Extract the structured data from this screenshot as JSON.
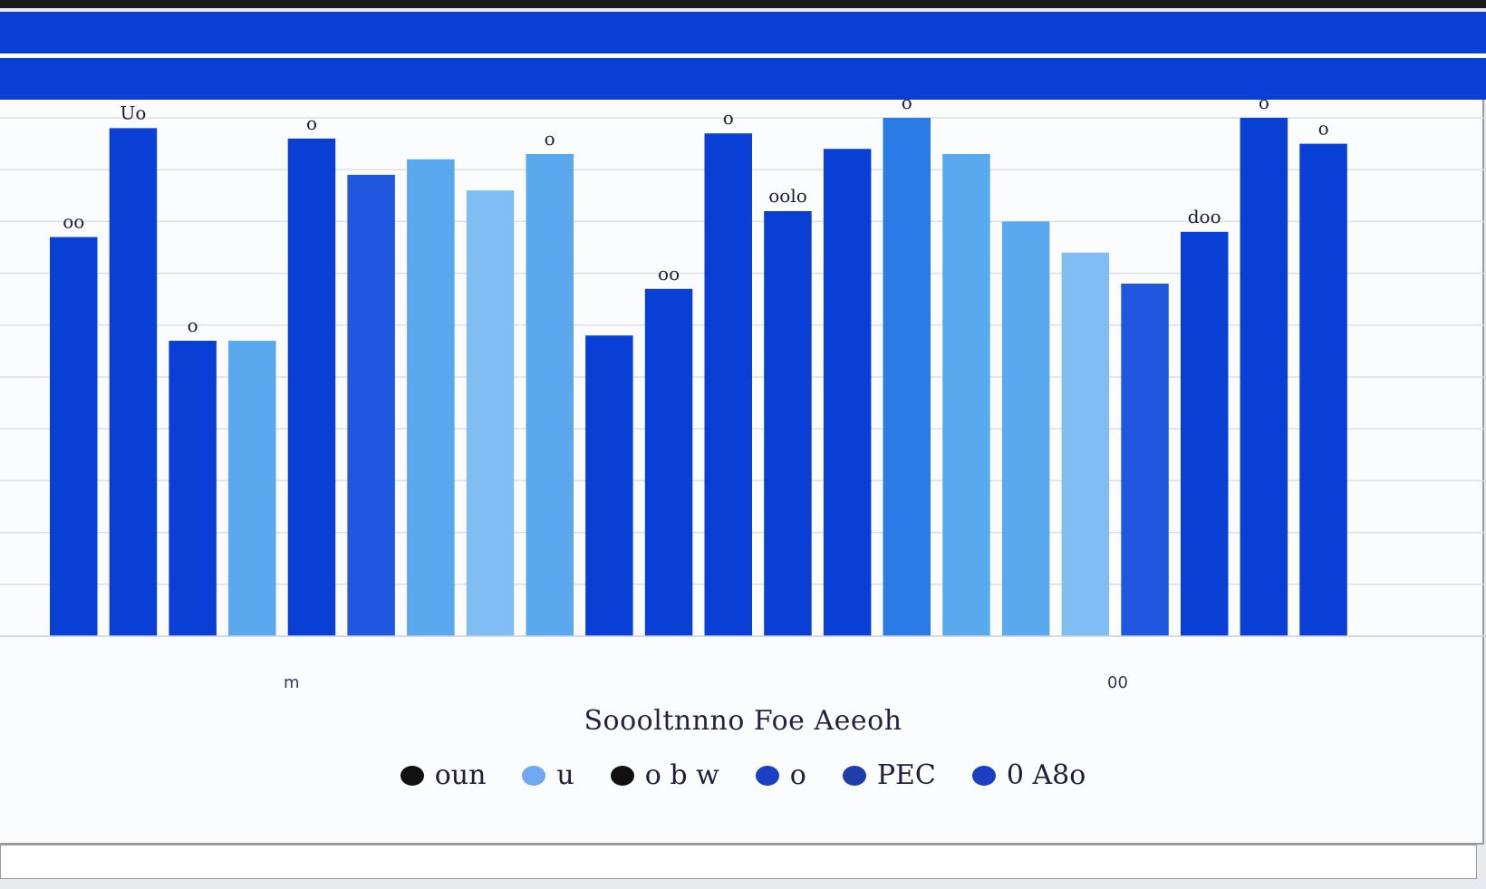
{
  "chart_data": {
    "type": "bar",
    "title": "",
    "xlabel": "Soooltnnno Foe Aeeoh",
    "ylabel": "",
    "x_tick_labels": [
      "m",
      "00"
    ],
    "ylim": [
      0,
      100
    ],
    "grid": true,
    "legend_placement": "bottom",
    "legend": [
      {
        "label": "oun",
        "color": "#111111"
      },
      {
        "label": "u",
        "color": "#6fa8f0"
      },
      {
        "label": "o b w",
        "color": "#111111"
      },
      {
        "label": "o",
        "color": "#1a3fc0"
      },
      {
        "label": "PEC",
        "color": "#1f3da8"
      },
      {
        "label": "0 A8o",
        "color": "#1a3fc0"
      }
    ],
    "bar_labels": [
      "Uo",
      "oo",
      "o",
      "o",
      "o",
      "oo",
      "oolo",
      "o",
      "doo",
      "o",
      "o",
      "o"
    ],
    "bars": [
      {
        "value": 77,
        "color": "#0a3fd6"
      },
      {
        "value": 98,
        "color": "#0a3fd6"
      },
      {
        "value": 57,
        "color": "#0a3fd6"
      },
      {
        "value": 57,
        "color": "#5aa8ee"
      },
      {
        "value": 96,
        "color": "#0a3fd6"
      },
      {
        "value": 89,
        "color": "#1f58de"
      },
      {
        "value": 92,
        "color": "#5aa8ee"
      },
      {
        "value": 86,
        "color": "#7fbdf2"
      },
      {
        "value": 93,
        "color": "#5aa8ee"
      },
      {
        "value": 58,
        "color": "#0a3fd6"
      },
      {
        "value": 67,
        "color": "#0a3fd6"
      },
      {
        "value": 97,
        "color": "#0a3fd6"
      },
      {
        "value": 82,
        "color": "#0a3fd6"
      },
      {
        "value": 94,
        "color": "#0a3fd6"
      },
      {
        "value": 100,
        "color": "#2a7be6"
      },
      {
        "value": 93,
        "color": "#5aa8ee"
      },
      {
        "value": 80,
        "color": "#5aa8ee"
      },
      {
        "value": 74,
        "color": "#7fbdf2"
      },
      {
        "value": 68,
        "color": "#1f58de"
      },
      {
        "value": 78,
        "color": "#0a3fd6"
      },
      {
        "value": 100,
        "color": "#0a3fd6"
      },
      {
        "value": 95,
        "color": "#0a3fd6"
      }
    ]
  },
  "colors": {
    "header_blue": "#0a3fd6",
    "bar_dark": "#0a3fd6",
    "bar_light": "#5aa8ee"
  }
}
